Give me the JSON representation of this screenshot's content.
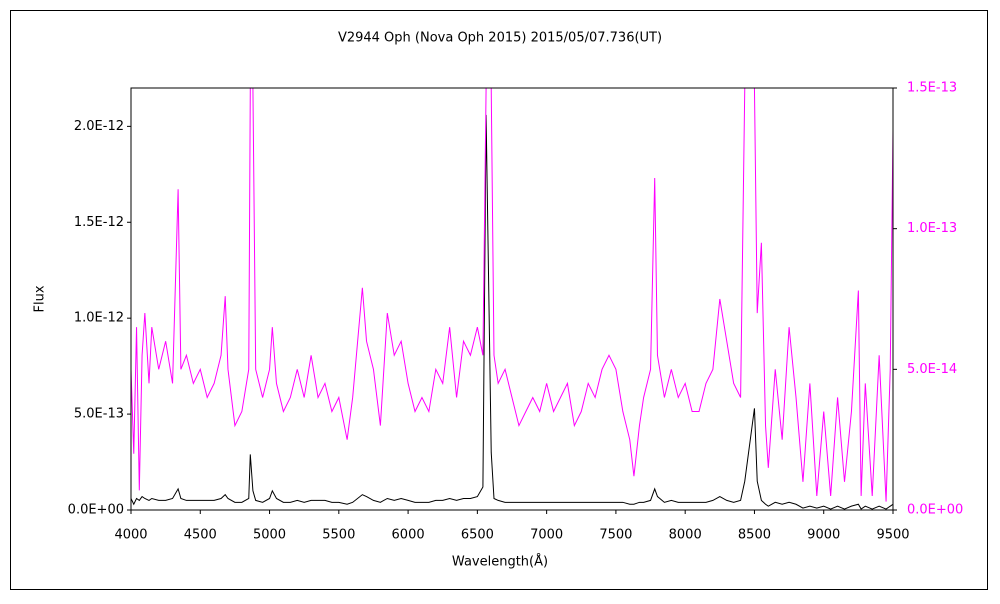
{
  "chart_data": {
    "type": "line",
    "title": "V2944 Oph (Nova Oph 2015)   2015/05/07.736(UT)",
    "x_label": "Wavelength(Å)",
    "y_label": "Flux",
    "xlim": [
      4000,
      9500
    ],
    "xticks": [
      4000,
      4500,
      5000,
      5500,
      6000,
      6500,
      7000,
      7500,
      8000,
      8500,
      9000,
      9500
    ],
    "ylim": [
      0,
      2.2e-12
    ],
    "yticks": [
      {
        "value": 0,
        "label": "0.0E+00"
      },
      {
        "value": 5e-13,
        "label": "5.0E-13"
      },
      {
        "value": 1e-12,
        "label": "1.0E-12"
      },
      {
        "value": 1.5e-12,
        "label": "1.5E-12"
      },
      {
        "value": 2e-12,
        "label": "2.0E-12"
      }
    ],
    "y2lim": [
      0,
      1.5e-13
    ],
    "y2ticks": [
      {
        "value": 0,
        "label": "0.0E+00"
      },
      {
        "value": 5e-14,
        "label": "5.0E-14"
      },
      {
        "value": 1e-13,
        "label": "1.0E-13"
      },
      {
        "value": 1.5e-13,
        "label": "1.5E-13"
      }
    ],
    "x": [
      4000,
      4020,
      4040,
      4060,
      4080,
      4100,
      4130,
      4150,
      4200,
      4250,
      4300,
      4340,
      4360,
      4400,
      4450,
      4500,
      4550,
      4600,
      4650,
      4680,
      4700,
      4750,
      4800,
      4850,
      4861,
      4880,
      4900,
      4950,
      5000,
      5020,
      5050,
      5100,
      5150,
      5200,
      5250,
      5300,
      5350,
      5400,
      5450,
      5500,
      5560,
      5600,
      5670,
      5700,
      5750,
      5800,
      5850,
      5900,
      5950,
      6000,
      6050,
      6100,
      6150,
      6200,
      6250,
      6300,
      6350,
      6400,
      6450,
      6500,
      6540,
      6563,
      6600,
      6620,
      6650,
      6700,
      6750,
      6800,
      6850,
      6900,
      6950,
      7000,
      7050,
      7100,
      7150,
      7200,
      7250,
      7300,
      7350,
      7400,
      7450,
      7500,
      7550,
      7600,
      7630,
      7670,
      7700,
      7750,
      7780,
      7800,
      7850,
      7900,
      7950,
      8000,
      8050,
      8100,
      8150,
      8200,
      8250,
      8300,
      8350,
      8400,
      8430,
      8500,
      8520,
      8550,
      8580,
      8600,
      8650,
      8700,
      8750,
      8800,
      8850,
      8900,
      8950,
      9000,
      9050,
      9100,
      9150,
      9200,
      9250,
      9270,
      9300,
      9350,
      9400,
      9450,
      9480,
      9500
    ],
    "series": [
      {
        "color": "#000000",
        "values": [
          6e-14,
          3e-14,
          6e-14,
          5e-14,
          7e-14,
          6e-14,
          5e-14,
          6e-14,
          5e-14,
          5e-14,
          6e-14,
          1.1e-13,
          6e-14,
          5e-14,
          5e-14,
          5e-14,
          5e-14,
          5e-14,
          6e-14,
          8e-14,
          6e-14,
          4e-14,
          4e-14,
          6e-14,
          2.9e-13,
          1e-13,
          5e-14,
          4e-14,
          6e-14,
          1e-13,
          6e-14,
          4e-14,
          4e-14,
          5e-14,
          4e-14,
          5e-14,
          5e-14,
          5e-14,
          4e-14,
          4e-14,
          3e-14,
          4e-14,
          8e-14,
          7e-14,
          5e-14,
          4e-14,
          6e-14,
          5e-14,
          6e-14,
          5e-14,
          4e-14,
          4e-14,
          4e-14,
          5e-14,
          5e-14,
          6e-14,
          5e-14,
          6e-14,
          6e-14,
          7e-14,
          1.2e-13,
          2.06e-12,
          3e-13,
          6e-14,
          5e-14,
          4e-14,
          4e-14,
          4e-14,
          4e-14,
          4e-14,
          4e-14,
          4e-14,
          4e-14,
          4e-14,
          4e-14,
          4e-14,
          4e-14,
          4e-14,
          4e-14,
          4e-14,
          4e-14,
          4e-14,
          4e-14,
          3e-14,
          3e-14,
          4e-14,
          4e-14,
          5e-14,
          1.1e-13,
          7e-14,
          4e-14,
          5e-14,
          4e-14,
          4e-14,
          4e-14,
          4e-14,
          4e-14,
          5e-14,
          7e-14,
          5e-14,
          4e-14,
          5e-14,
          1.5e-13,
          5.3e-13,
          1.5e-13,
          5e-14,
          3e-14,
          2e-14,
          4e-14,
          3e-14,
          4e-14,
          3e-14,
          1e-14,
          2e-14,
          1e-14,
          2e-14,
          5e-15,
          2e-14,
          5e-15,
          2e-14,
          3e-14,
          5e-15,
          2e-14,
          5e-15,
          2e-14,
          5e-15,
          2e-14,
          3e-14
        ]
      },
      {
        "color": "#ff00ff",
        "axis": "y2",
        "values": [
          5e-14,
          2e-14,
          6.5e-14,
          7e-15,
          5.5e-14,
          7e-14,
          4.5e-14,
          6.5e-14,
          5e-14,
          6e-14,
          4.5e-14,
          1.14e-13,
          5e-14,
          5.5e-14,
          4.5e-14,
          5e-14,
          4e-14,
          4.5e-14,
          5.5e-14,
          7.6e-14,
          5e-14,
          3e-14,
          3.5e-14,
          5e-14,
          1.5e-13,
          1.5e-13,
          5e-14,
          4e-14,
          5e-14,
          6.5e-14,
          4.5e-14,
          3.5e-14,
          4e-14,
          5e-14,
          4e-14,
          5.5e-14,
          4e-14,
          4.5e-14,
          3.5e-14,
          4e-14,
          2.5e-14,
          4e-14,
          7.9e-14,
          6e-14,
          5e-14,
          3e-14,
          7e-14,
          5.5e-14,
          6e-14,
          4.5e-14,
          3.5e-14,
          4e-14,
          3.5e-14,
          5e-14,
          4.5e-14,
          6.5e-14,
          4e-14,
          6e-14,
          5.5e-14,
          6.5e-14,
          5.5e-14,
          1.5e-13,
          1.5e-13,
          5.5e-14,
          4.5e-14,
          5e-14,
          4e-14,
          3e-14,
          3.5e-14,
          4e-14,
          3.5e-14,
          4.5e-14,
          3.5e-14,
          4e-14,
          4.5e-14,
          3e-14,
          3.5e-14,
          4.5e-14,
          4e-14,
          5e-14,
          5.5e-14,
          5e-14,
          3.5e-14,
          2.5e-14,
          1.2e-14,
          3e-14,
          4e-14,
          5e-14,
          1.18e-13,
          5.5e-14,
          4e-14,
          5e-14,
          4e-14,
          4.5e-14,
          3.5e-14,
          3.5e-14,
          4.5e-14,
          5e-14,
          7.5e-14,
          6e-14,
          4.5e-14,
          4e-14,
          1.5e-13,
          1.5e-13,
          7e-14,
          9.5e-14,
          3e-14,
          1.5e-14,
          5e-14,
          2.5e-14,
          6.5e-14,
          4e-14,
          1e-14,
          4.5e-14,
          5e-15,
          3.5e-14,
          5e-15,
          4e-14,
          1e-14,
          3.5e-14,
          7.8e-14,
          5e-15,
          4.5e-14,
          5e-15,
          5.5e-14,
          3e-15,
          5e-14,
          1.35e-13
        ]
      }
    ]
  }
}
